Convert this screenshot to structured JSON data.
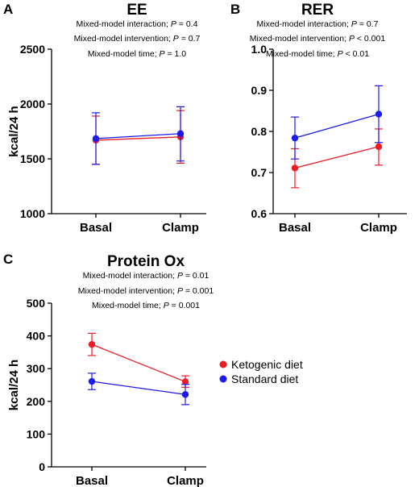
{
  "legend": [
    {
      "label": "Ketogenic diet",
      "color": "#ee1c25"
    },
    {
      "label": "Standard diet",
      "color": "#1b1bf0"
    }
  ],
  "chart_data": [
    {
      "panel": "A",
      "type": "line",
      "title": "EE",
      "ylabel": "kcal/24 h",
      "xlabel": "",
      "categories": [
        "Basal",
        "Clamp"
      ],
      "ylim": [
        1000,
        2500
      ],
      "yticks": [
        "1000",
        "1500",
        "2000",
        "2500"
      ],
      "stats": [
        {
          "text": "Mixed-model interaction; ",
          "p": "P",
          "rest": " = 0.4"
        },
        {
          "text": "Mixed-model intervention; ",
          "p": "P",
          "rest": " = 0.7"
        },
        {
          "text": "Mixed-model time; ",
          "p": "P",
          "rest": " = 1.0"
        }
      ],
      "series": [
        {
          "name": "Ketogenic diet",
          "color": "#ee1c25",
          "values": [
            1670,
            1700
          ],
          "err_low": [
            1450,
            1460
          ],
          "err_high": [
            1890,
            1940
          ]
        },
        {
          "name": "Standard diet",
          "color": "#1b1bf0",
          "values": [
            1685,
            1730
          ],
          "err_low": [
            1450,
            1480
          ],
          "err_high": [
            1920,
            1975
          ]
        }
      ]
    },
    {
      "panel": "B",
      "type": "line",
      "title": "RER",
      "ylabel": "",
      "xlabel": "",
      "categories": [
        "Basal",
        "Clamp"
      ],
      "ylim": [
        0.6,
        1.0
      ],
      "yticks": [
        "0.6",
        "0.7",
        "0.8",
        "0.9",
        "1.0"
      ],
      "stats": [
        {
          "text": "Mixed-model interaction; ",
          "p": "P",
          "rest": " = 0.7"
        },
        {
          "text": "Mixed-model intervention; ",
          "p": "P",
          "rest": " < 0.001"
        },
        {
          "text": "Mixed-model time; ",
          "p": "P",
          "rest": " < 0.01"
        }
      ],
      "series": [
        {
          "name": "Ketogenic diet",
          "color": "#ee1c25",
          "values": [
            0.711,
            0.763
          ],
          "err_low": [
            0.663,
            0.718
          ],
          "err_high": [
            0.758,
            0.806
          ]
        },
        {
          "name": "Standard diet",
          "color": "#1b1bf0",
          "values": [
            0.784,
            0.842
          ],
          "err_low": [
            0.733,
            0.773
          ],
          "err_high": [
            0.835,
            0.911
          ]
        }
      ]
    },
    {
      "panel": "C",
      "type": "line",
      "title": "Protein Ox",
      "ylabel": "kcal/24 h",
      "xlabel": "",
      "categories": [
        "Basal",
        "Clamp"
      ],
      "ylim": [
        0,
        500
      ],
      "yticks": [
        "0",
        "100",
        "200",
        "300",
        "400",
        "500"
      ],
      "stats": [
        {
          "text": "Mixed-model interaction; ",
          "p": "P",
          "rest": " = 0.01"
        },
        {
          "text": "Mixed-model intervention; ",
          "p": "P",
          "rest": " = 0.001"
        },
        {
          "text": "Mixed-model time; ",
          "p": "P",
          "rest": " = 0.001"
        }
      ],
      "series": [
        {
          "name": "Ketogenic diet",
          "color": "#ee1c25",
          "values": [
            374,
            260
          ],
          "err_low": [
            340,
            243
          ],
          "err_high": [
            408,
            278
          ]
        },
        {
          "name": "Standard diet",
          "color": "#1b1bf0",
          "values": [
            261,
            221
          ],
          "err_low": [
            236,
            190
          ],
          "err_high": [
            286,
            252
          ]
        }
      ]
    }
  ]
}
